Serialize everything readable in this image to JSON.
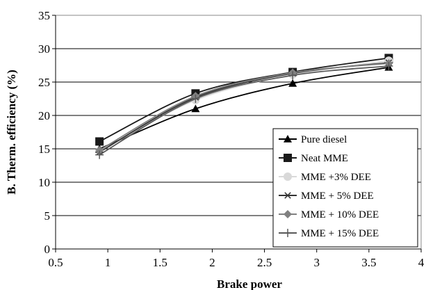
{
  "chart_data": {
    "type": "line",
    "title": "",
    "xlabel": "Brake power",
    "ylabel": "B. Therm. efficiency (%)",
    "xlim": [
      0.5,
      4
    ],
    "ylim": [
      0,
      35
    ],
    "x_ticks": [
      "0.5",
      "1",
      "1.5",
      "2",
      "2.5",
      "3",
      "3.5",
      "4"
    ],
    "y_ticks": [
      "0",
      "5",
      "10",
      "15",
      "20",
      "25",
      "30",
      "35"
    ],
    "grid": "horizontal",
    "legend_position": "lower-right",
    "series": [
      {
        "name": "Pure diesel",
        "marker": "triangle",
        "color": "#000000",
        "x": [
          0.92,
          1.84,
          2.77,
          3.69
        ],
        "y": [
          15.0,
          21.0,
          24.8,
          27.2
        ]
      },
      {
        "name": "Neat MME",
        "marker": "square",
        "color": "#1a1a1a",
        "x": [
          0.92,
          1.84,
          2.77,
          3.69
        ],
        "y": [
          16.1,
          23.3,
          26.5,
          28.6
        ]
      },
      {
        "name": "MME +3% DEE",
        "marker": "circle",
        "color": "#d9d9d9",
        "x": [
          0.92,
          1.84,
          2.77,
          3.69
        ],
        "y": [
          14.6,
          22.3,
          26.1,
          28.2
        ]
      },
      {
        "name": "MME + 5% DEE",
        "marker": "asterisk",
        "color": "#333333",
        "x": [
          0.92,
          1.84,
          2.77,
          3.69
        ],
        "y": [
          14.5,
          22.7,
          26.3,
          27.9
        ]
      },
      {
        "name": "MME + 10% DEE",
        "marker": "diamond",
        "color": "#808080",
        "x": [
          0.92,
          1.84,
          2.77,
          3.69
        ],
        "y": [
          14.8,
          22.9,
          26.4,
          27.8
        ]
      },
      {
        "name": "MME + 15% DEE",
        "marker": "plus",
        "color": "#595959",
        "x": [
          0.92,
          1.84,
          2.77,
          3.69
        ],
        "y": [
          14.1,
          22.5,
          26.0,
          27.4
        ]
      }
    ]
  }
}
